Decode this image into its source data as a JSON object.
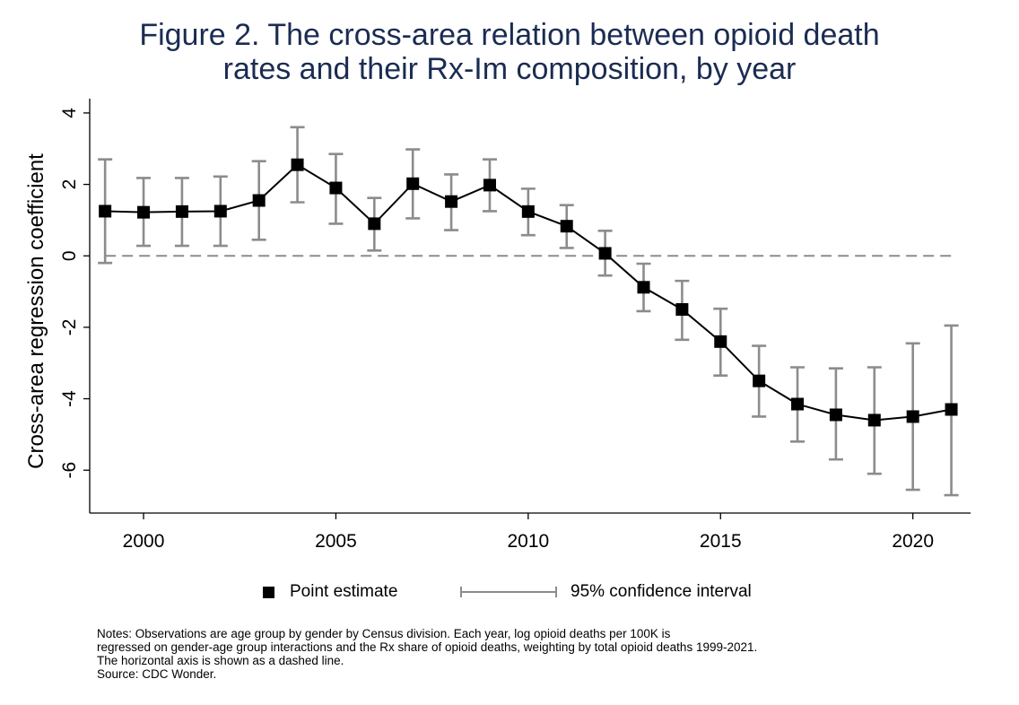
{
  "title_line1": "Figure 2.  The cross-area relation between opioid death",
  "title_line2": "rates and their Rx-Im composition, by year",
  "legend": {
    "point_label": "Point estimate",
    "ci_label": "95% confidence interval"
  },
  "notes": [
    "Notes: Observations are age group by gender by Census division.  Each year, log opioid deaths per 100K is",
    "regressed on gender-age group interactions and the Rx share of opioid deaths, weighting by total opioid deaths 1999-2021.",
    "The horizontal axis is shown as a dashed line.",
    "Source: CDC Wonder."
  ],
  "colors": {
    "title": "#1b2c52",
    "ci": "#8c8c8c",
    "line": "#000000",
    "zero_line": "#8c8c8c"
  },
  "chart_data": {
    "type": "line",
    "title": "Figure 2.  The cross-area relation between opioid death rates and their Rx-Im composition, by year",
    "xlabel": "",
    "ylabel": "Cross-area regression coefficient",
    "xlim": [
      1998.6,
      2021.5
    ],
    "ylim": [
      -7.2,
      4.4
    ],
    "xticks": [
      2000,
      2005,
      2010,
      2015,
      2020
    ],
    "yticks": [
      4,
      2,
      0,
      -2,
      -4,
      -6
    ],
    "zero_line": "dashed",
    "grid": false,
    "legend_position": "bottom",
    "series": [
      {
        "name": "Point estimate",
        "x": [
          1999,
          2000,
          2001,
          2002,
          2003,
          2004,
          2005,
          2006,
          2007,
          2008,
          2009,
          2010,
          2011,
          2012,
          2013,
          2014,
          2015,
          2016,
          2017,
          2018,
          2019,
          2020,
          2021
        ],
        "values": [
          1.25,
          1.22,
          1.24,
          1.25,
          1.55,
          2.55,
          1.9,
          0.9,
          2.02,
          1.52,
          1.98,
          1.24,
          0.83,
          0.07,
          -0.88,
          -1.5,
          -2.4,
          -3.5,
          -4.15,
          -4.45,
          -4.6,
          -4.5,
          -4.3
        ],
        "ci_low": [
          -0.2,
          0.28,
          0.28,
          0.28,
          0.45,
          1.5,
          0.9,
          0.15,
          1.05,
          0.72,
          1.25,
          0.58,
          0.22,
          -0.55,
          -1.55,
          -2.35,
          -3.35,
          -4.5,
          -5.2,
          -5.7,
          -6.1,
          -6.55,
          -6.7
        ],
        "ci_high": [
          2.7,
          2.18,
          2.18,
          2.22,
          2.65,
          3.6,
          2.85,
          1.62,
          2.98,
          2.28,
          2.7,
          1.88,
          1.42,
          0.7,
          -0.22,
          -0.7,
          -1.48,
          -2.52,
          -3.12,
          -3.15,
          -3.12,
          -2.45,
          -1.95
        ]
      }
    ]
  }
}
